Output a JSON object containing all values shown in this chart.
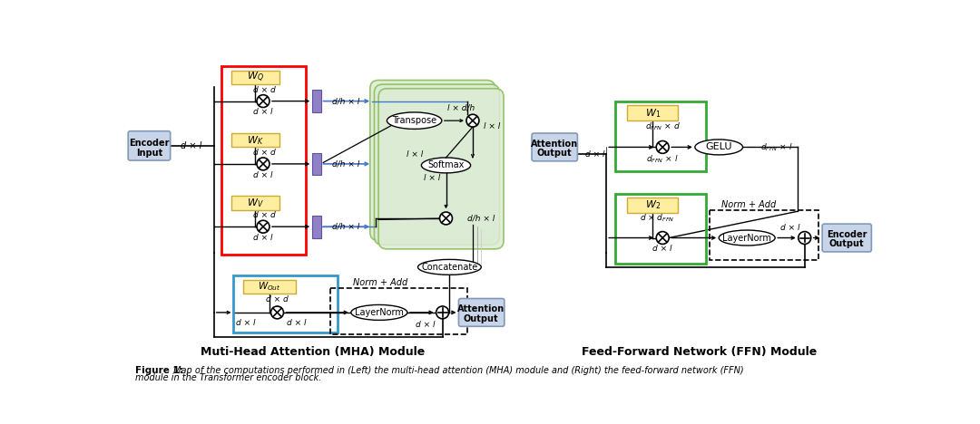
{
  "title_left": "Muti-Head Attention (MHA) Module",
  "title_right": "Feed-Forward Network (FFN) Module",
  "caption_bold": "Figure 1:",
  "caption_italic": " Map of the computations performed in (Left) the multi-head attention (MHA) module and (Right) the feed-forward network (FFN)",
  "caption_line2": "module in the Transformer encoder block.",
  "bg_color": "#ffffff",
  "fig_width": 10.8,
  "fig_height": 4.68
}
